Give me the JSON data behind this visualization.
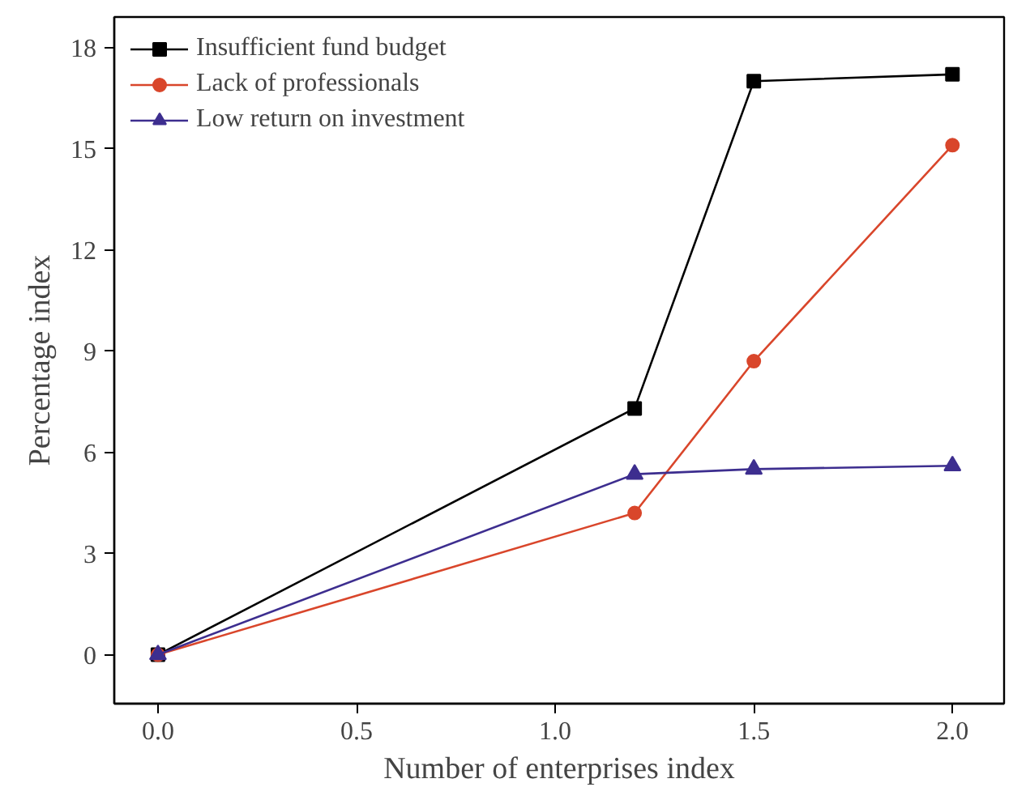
{
  "chart_data": {
    "type": "line",
    "xlabel": "Number of enterprises index",
    "ylabel": "Percentage index",
    "x": [
      0.0,
      1.2,
      1.5,
      2.0
    ],
    "series": [
      {
        "name": "Insufficient fund budget",
        "color": "#000000",
        "marker": "square",
        "values": [
          0,
          7.3,
          17.0,
          17.2
        ]
      },
      {
        "name": "Lack of professionals",
        "color": "#d9462b",
        "marker": "circle",
        "values": [
          0,
          4.2,
          8.7,
          15.1
        ]
      },
      {
        "name": "Low return on investment",
        "color": "#3d2e8f",
        "marker": "triangle",
        "values": [
          0,
          5.35,
          5.5,
          5.6
        ]
      }
    ],
    "xlim": [
      -0.11,
      2.13
    ],
    "ylim": [
      -1.45,
      18.9
    ],
    "xticks": [
      {
        "value": 0,
        "label": "0.0"
      },
      0.5,
      {
        "value": 1,
        "label": "1.0"
      },
      1.5,
      {
        "value": 2,
        "label": "2.0"
      }
    ],
    "yticks": [
      0,
      3,
      6,
      9,
      12,
      15,
      18
    ],
    "grid": false,
    "legend": "top left",
    "line_style": "solid"
  }
}
